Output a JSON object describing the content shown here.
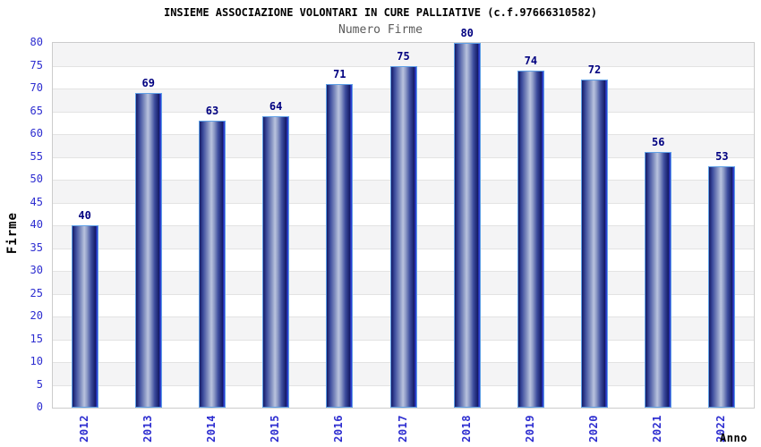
{
  "chart_data": {
    "type": "bar",
    "title": "INSIEME ASSOCIAZIONE VOLONTARI IN CURE PALLIATIVE (c.f.97666310582)",
    "subtitle": "Numero Firme",
    "xlabel": "Anno",
    "ylabel": "Firme",
    "categories": [
      "2012",
      "2013",
      "2014",
      "2015",
      "2016",
      "2017",
      "2018",
      "2019",
      "2020",
      "2021",
      "2022"
    ],
    "values": [
      40,
      69,
      63,
      64,
      71,
      75,
      80,
      74,
      72,
      56,
      53
    ],
    "ylim": [
      0,
      80
    ],
    "ytick_step": 5,
    "legend": "none",
    "grid": "horizontal-bands-alternating",
    "colors": {
      "bar_dark": "#141a66",
      "bar_mid": "#3d4d9e",
      "bar_mid_light": "#8d9ac6",
      "bar_highlight": "#b9c3de",
      "bar_right_accent": "#2e3fd0",
      "bar_border": "#5fa0e6",
      "axis_tick_label": "#2d2dd0",
      "value_label": "#000080",
      "band_shaded": "#f4f4f5",
      "band_plain": "#ffffff",
      "gridline": "#e3e3e3",
      "plot_border": "#cccccc",
      "title": "#000000",
      "subtitle": "#5a5a5a"
    }
  }
}
